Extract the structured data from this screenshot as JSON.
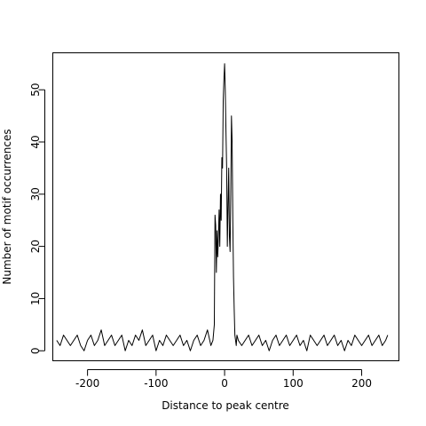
{
  "chart_data": {
    "type": "line",
    "title": "",
    "xlabel": "Distance to peak centre",
    "ylabel": "Number of motif occurrences",
    "xlim": [
      -250,
      255
    ],
    "ylim": [
      -2,
      57
    ],
    "xticks": [
      -200,
      -100,
      0,
      100,
      200
    ],
    "yticks": [
      0,
      10,
      20,
      30,
      40,
      50
    ],
    "xtick_labels": [
      "-200",
      "-100",
      "0",
      "100",
      "200"
    ],
    "ytick_labels": [
      "0",
      "10",
      "20",
      "30",
      "40",
      "50"
    ],
    "grid": false,
    "legend": "none",
    "line_color": "#000000",
    "series": [
      {
        "x": [
          -245,
          -240,
          -235,
          -230,
          -225,
          -220,
          -215,
          -210,
          -205,
          -200,
          -195,
          -190,
          -185,
          -180,
          -175,
          -170,
          -165,
          -160,
          -155,
          -150,
          -145,
          -140,
          -135,
          -130,
          -125,
          -120,
          -115,
          -110,
          -105,
          -100,
          -95,
          -90,
          -85,
          -80,
          -75,
          -70,
          -65,
          -60,
          -55,
          -50,
          -45,
          -40,
          -35,
          -30,
          -25,
          -20,
          -17,
          -15,
          -14,
          -13,
          -12,
          -11,
          -10,
          -9,
          -8,
          -7,
          -6,
          -5,
          -4,
          -3,
          -2,
          -1,
          0,
          1,
          2,
          3,
          4,
          5,
          6,
          7,
          8,
          9,
          10,
          11,
          12,
          13,
          14,
          15,
          16,
          17,
          18,
          20,
          25,
          30,
          35,
          40,
          45,
          50,
          55,
          60,
          65,
          70,
          75,
          80,
          85,
          90,
          95,
          100,
          105,
          110,
          115,
          120,
          125,
          130,
          135,
          140,
          145,
          150,
          155,
          160,
          165,
          170,
          175,
          180,
          185,
          190,
          195,
          200,
          205,
          210,
          215,
          220,
          225,
          230,
          235,
          238
        ],
        "y": [
          2,
          1,
          3,
          2,
          1,
          2,
          3,
          1,
          0,
          2,
          3,
          1,
          2,
          4,
          1,
          2,
          3,
          1,
          2,
          3,
          0,
          2,
          1,
          3,
          2,
          4,
          1,
          2,
          3,
          0,
          2,
          1,
          3,
          2,
          1,
          2,
          3,
          1,
          2,
          0,
          2,
          3,
          1,
          2,
          4,
          1,
          2,
          5,
          26,
          24,
          15,
          23,
          18,
          22,
          27,
          20,
          30,
          25,
          37,
          35,
          48,
          52,
          55,
          50,
          42,
          35,
          20,
          28,
          35,
          22,
          19,
          30,
          45,
          40,
          25,
          14,
          8,
          3,
          2,
          1,
          3,
          2,
          1,
          2,
          3,
          1,
          2,
          3,
          1,
          2,
          0,
          2,
          3,
          1,
          2,
          3,
          1,
          2,
          3,
          1,
          2,
          0,
          3,
          2,
          1,
          2,
          3,
          1,
          2,
          3,
          1,
          2,
          0,
          2,
          1,
          3,
          2,
          1,
          2,
          3,
          1,
          2,
          3,
          1,
          2,
          3
        ]
      }
    ]
  }
}
